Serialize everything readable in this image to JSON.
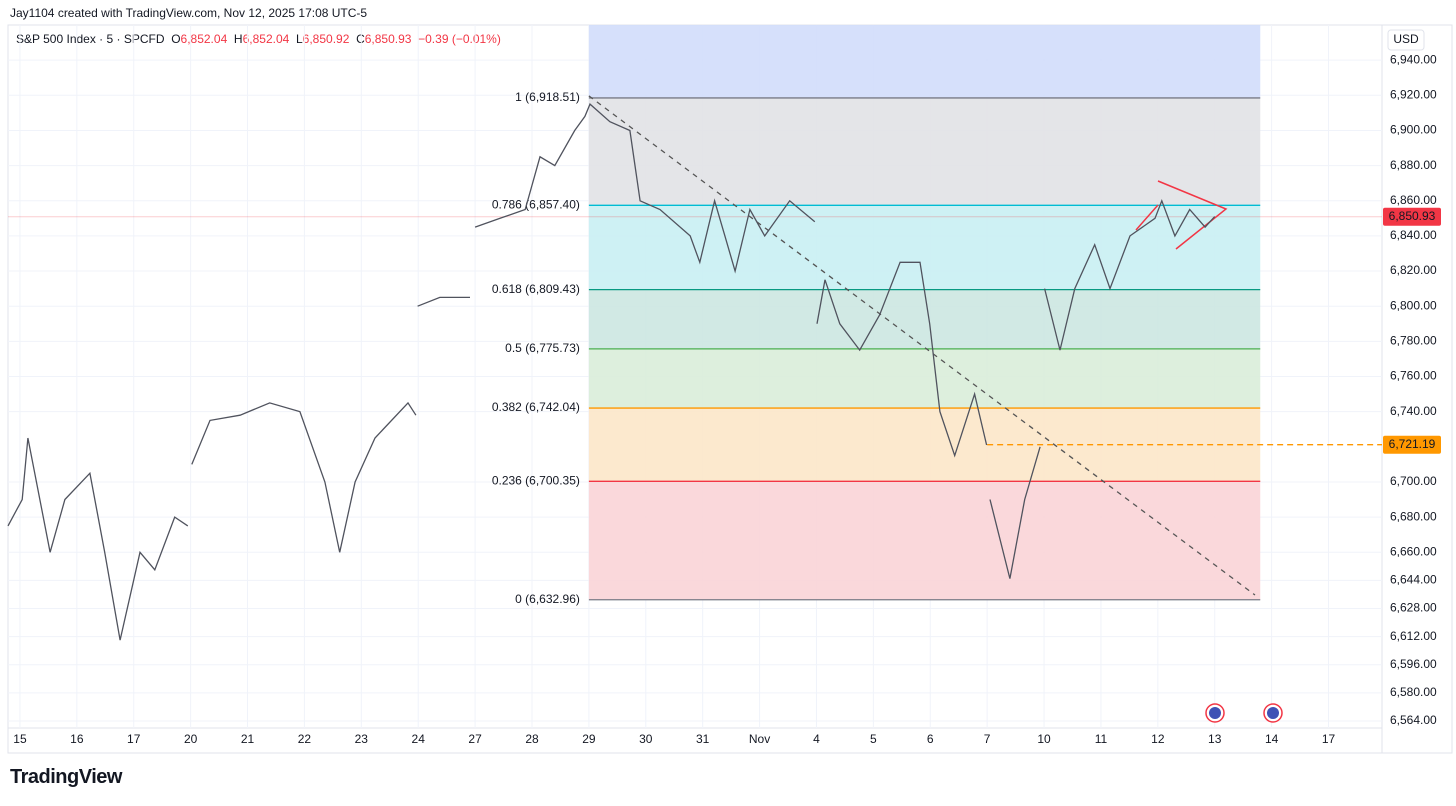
{
  "header": {
    "credit": "Jay1104 created with TradingView.com, Nov 12, 2025 17:08 UTC-5",
    "symbol": "S&P 500 Index · 5 · SPCFD",
    "open_label": "O",
    "open": "6,852.04",
    "high_label": "H",
    "high": "6,852.04",
    "low_label": "L",
    "low": "6,850.92",
    "close_label": "C",
    "close": "6,850.93",
    "change": "−0.39 (−0.01%)"
  },
  "chart_data": {
    "type": "line",
    "currency": "USD",
    "series": [
      {
        "name": "S&P 500 Index",
        "color": "#50535e",
        "x": [
          -0.21,
          0.04,
          0.14,
          0.53,
          0.79,
          1.23,
          1.49,
          1.76,
          2.11,
          2.37,
          2.72,
          2.95,
          null,
          3.02,
          3.34,
          3.87,
          4.39,
          4.92,
          5.36,
          5.62,
          5.89,
          6.24,
          6.82,
          6.96,
          null,
          6.99,
          7.38,
          7.91,
          null,
          8.0,
          8.44,
          8.88,
          9.14,
          9.4,
          9.75,
          9.93,
          10.02,
          10.37,
          10.72,
          10.9,
          11.25,
          11.78,
          11.95,
          12.21,
          12.39,
          12.57,
          12.83,
          13.09,
          13.53,
          13.97,
          null,
          14.01,
          14.15,
          14.41,
          14.76,
          15.11,
          15.47,
          15.82,
          15.99,
          16.17,
          16.43,
          16.78,
          16.99,
          null,
          17.05,
          17.4,
          17.66,
          17.93,
          null,
          18.01,
          18.28,
          18.54,
          18.89,
          19.16,
          19.51,
          19.95,
          20.07,
          20.3,
          20.56,
          20.83,
          21.0
        ],
        "values": [
          6675,
          6690,
          6725,
          6660,
          6690,
          6705,
          6660,
          6610,
          6660,
          6650,
          6680,
          6675,
          null,
          6710,
          6735,
          6738,
          6745,
          6740,
          6700,
          6660,
          6700,
          6725,
          6745,
          6738,
          null,
          6800,
          6805,
          6805,
          null,
          6845,
          6850,
          6855,
          6885,
          6880,
          6900,
          6908,
          6915,
          6905,
          6900,
          6860,
          6855,
          6840,
          6825,
          6860,
          6840,
          6820,
          6855,
          6840,
          6860,
          6848,
          null,
          6790,
          6815,
          6790,
          6775,
          6795,
          6825,
          6825,
          6790,
          6740,
          6715,
          6750,
          6721,
          null,
          6690,
          6645,
          6690,
          6720,
          null,
          6810,
          6775,
          6810,
          6835,
          6810,
          6840,
          6850,
          6860,
          6840,
          6855,
          6845,
          6851
        ]
      }
    ],
    "xlim": [
      -0.21,
      23.94
    ],
    "xticks": [
      {
        "value": 0,
        "label": "15"
      },
      {
        "value": 1,
        "label": "16"
      },
      {
        "value": 2,
        "label": "17"
      },
      {
        "value": 3,
        "label": "20"
      },
      {
        "value": 4,
        "label": "21"
      },
      {
        "value": 5,
        "label": "22"
      },
      {
        "value": 6,
        "label": "23"
      },
      {
        "value": 7,
        "label": "24"
      },
      {
        "value": 8,
        "label": "27"
      },
      {
        "value": 9,
        "label": "28"
      },
      {
        "value": 10,
        "label": "29"
      },
      {
        "value": 11,
        "label": "30"
      },
      {
        "value": 12,
        "label": "31"
      },
      {
        "value": 13,
        "label": "Nov"
      },
      {
        "value": 14,
        "label": "4"
      },
      {
        "value": 15,
        "label": "5"
      },
      {
        "value": 16,
        "label": "6"
      },
      {
        "value": 17,
        "label": "7"
      },
      {
        "value": 18,
        "label": "10"
      },
      {
        "value": 19,
        "label": "11"
      },
      {
        "value": 20,
        "label": "12"
      },
      {
        "value": 21,
        "label": "13"
      },
      {
        "value": 22,
        "label": "14"
      },
      {
        "value": 23,
        "label": "17"
      }
    ],
    "ylim": [
      6560,
      6960
    ],
    "yticks": [
      {
        "value": 6940,
        "label": "6,940.00"
      },
      {
        "value": 6920,
        "label": "6,920.00"
      },
      {
        "value": 6900,
        "label": "6,900.00"
      },
      {
        "value": 6880,
        "label": "6,880.00"
      },
      {
        "value": 6860,
        "label": "6,860.00"
      },
      {
        "value": 6840,
        "label": "6,840.00"
      },
      {
        "value": 6820,
        "label": "6,820.00"
      },
      {
        "value": 6800,
        "label": "6,800.00"
      },
      {
        "value": 6780,
        "label": "6,780.00"
      },
      {
        "value": 6760,
        "label": "6,760.00"
      },
      {
        "value": 6740,
        "label": "6,740.00"
      },
      {
        "value": 6700,
        "label": "6,700.00"
      },
      {
        "value": 6680,
        "label": "6,680.00"
      },
      {
        "value": 6660,
        "label": "6,660.00"
      },
      {
        "value": 6644,
        "label": "6,644.00"
      },
      {
        "value": 6628,
        "label": "6,628.00"
      },
      {
        "value": 6612,
        "label": "6,612.00"
      },
      {
        "value": 6596,
        "label": "6,596.00"
      },
      {
        "value": 6580,
        "label": "6,580.00"
      },
      {
        "value": 6564,
        "label": "6,564.00"
      }
    ],
    "fib": {
      "top_color": "#d2ddfb",
      "levels": [
        {
          "value": 6918.51,
          "label": "1 (6,918.51)",
          "color": "#787b86",
          "fill": "#e1e2e5"
        },
        {
          "value": 6857.4,
          "label": "0.786 (6,857.40)",
          "color": "#00bcd4",
          "fill": "#c9eff3"
        },
        {
          "value": 6809.43,
          "label": "0.618 (6,809.43)",
          "color": "#089981",
          "fill": "#cce7e1"
        },
        {
          "value": 6775.73,
          "label": "0.5 (6,775.73)",
          "color": "#4caf50",
          "fill": "#d9edd9"
        },
        {
          "value": 6742.04,
          "label": "0.382 (6,742.04)",
          "color": "#ff9800",
          "fill": "#fce7c9"
        },
        {
          "value": 6700.35,
          "label": "0.236 (6,700.35)",
          "color": "#f23645",
          "fill": "#f9d4d7"
        },
        {
          "value": 6632.96,
          "label": "0 (6,632.96)",
          "color": "#787b86",
          "fill": "#f9d4d7"
        }
      ]
    },
    "price_labels": [
      {
        "value": 6850.93,
        "label": "6,850.93",
        "color": "#f23645"
      },
      {
        "value": 6721.19,
        "label": "6,721.19",
        "color": "#ff9800"
      }
    ]
  },
  "footer": {
    "logo": "TradingView"
  }
}
